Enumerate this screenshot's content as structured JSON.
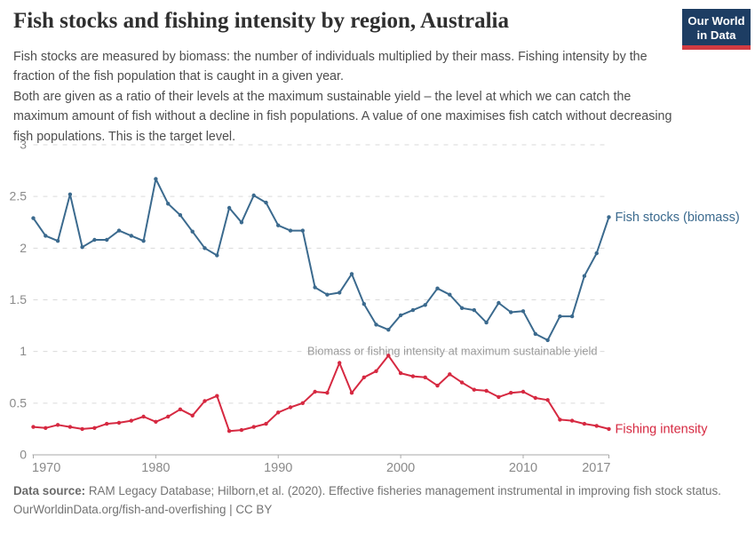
{
  "header": {
    "title": "Fish stocks and fishing intensity by region, Australia",
    "subtitle_p1": "Fish stocks are measured by biomass: the number of individuals multiplied by their mass. Fishing intensity by the fraction of the fish population that is caught in a given year.",
    "subtitle_p2": "Both are given as a ratio of their levels at the maximum sustainable yield – the level at which we can catch the maximum amount of fish without a decline in fish populations. A value of one maximises fish catch without decreasing fish populations. This is the target level.",
    "logo_line1": "Our World",
    "logo_line2": "in Data",
    "logo_bg_color": "#1d3d63",
    "logo_stripe_color": "#d13b42"
  },
  "chart_data": {
    "type": "line",
    "title": "Fish stocks and fishing intensity by region, Australia",
    "x": [
      1970,
      1971,
      1972,
      1973,
      1974,
      1975,
      1976,
      1977,
      1978,
      1979,
      1980,
      1981,
      1982,
      1983,
      1984,
      1985,
      1986,
      1987,
      1988,
      1989,
      1990,
      1991,
      1992,
      1993,
      1994,
      1995,
      1996,
      1997,
      1998,
      1999,
      2000,
      2001,
      2002,
      2003,
      2004,
      2005,
      2006,
      2007,
      2008,
      2009,
      2010,
      2011,
      2012,
      2013,
      2014,
      2015,
      2016,
      2017
    ],
    "series": [
      {
        "name": "Fish stocks (biomass)",
        "color": "#3b6a8e",
        "values": [
          2.29,
          2.12,
          2.07,
          2.52,
          2.01,
          2.08,
          2.08,
          2.17,
          2.12,
          2.07,
          2.67,
          2.43,
          2.32,
          2.16,
          2.0,
          1.93,
          2.39,
          2.25,
          2.51,
          2.44,
          2.22,
          2.17,
          2.17,
          1.62,
          1.55,
          1.57,
          1.75,
          1.46,
          1.26,
          1.21,
          1.35,
          1.4,
          1.45,
          1.61,
          1.55,
          1.42,
          1.4,
          1.28,
          1.47,
          1.38,
          1.39,
          1.17,
          1.11,
          1.34,
          1.34,
          1.73,
          1.95,
          2.3
        ]
      },
      {
        "name": "Fishing intensity",
        "color": "#d62941",
        "values": [
          0.27,
          0.26,
          0.29,
          0.27,
          0.25,
          0.26,
          0.3,
          0.31,
          0.33,
          0.37,
          0.32,
          0.37,
          0.44,
          0.38,
          0.52,
          0.57,
          0.23,
          0.24,
          0.27,
          0.3,
          0.41,
          0.46,
          0.5,
          0.61,
          0.6,
          0.89,
          0.6,
          0.75,
          0.81,
          0.96,
          0.79,
          0.76,
          0.75,
          0.67,
          0.78,
          0.7,
          0.63,
          0.62,
          0.56,
          0.6,
          0.61,
          0.55,
          0.53,
          0.34,
          0.33,
          0.3,
          0.28,
          0.25
        ]
      }
    ],
    "annotation": "Biomass or fishing intensity at maximum sustainable yield",
    "annotation_level": 1,
    "xlabel": "",
    "ylabel": "",
    "ylim": [
      0,
      3
    ],
    "yticks": [
      0,
      0.5,
      1,
      1.5,
      2,
      2.5,
      3
    ],
    "ytick_labels": [
      "0",
      "0.5",
      "1",
      "1.5",
      "2",
      "2.5",
      "3"
    ],
    "xticks": [
      1970,
      1980,
      1990,
      2000,
      2010,
      2017
    ],
    "xtick_labels": [
      "1970",
      "1980",
      "1990",
      "2000",
      "2010",
      "2017"
    ],
    "grid": "horizontal-dashed",
    "legend_position": "end-of-line-labels",
    "grid_color": "#dadada",
    "axis_color": "#a8a8a8",
    "tick_label_color": "#8a8a8a",
    "annotation_color": "#9b9b9b"
  },
  "footer": {
    "source_label": "Data source:",
    "source_text": " RAM Legacy Database; Hilborn,et al. (2020). Effective fisheries management instrumental in improving fish stock status.",
    "license_line": "OurWorldinData.org/fish-and-overfishing | CC BY"
  }
}
